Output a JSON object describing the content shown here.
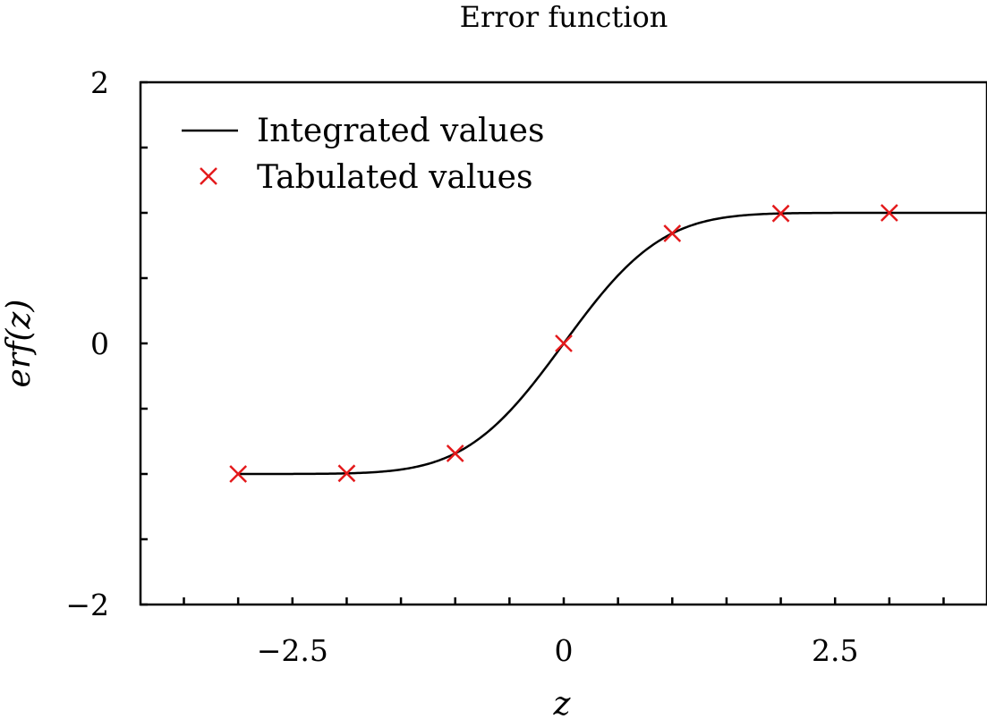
{
  "chart_data": {
    "type": "line",
    "title": "Error function",
    "xlabel": "z",
    "ylabel": "erf(z)",
    "xlim": [
      -3.9,
      3.9
    ],
    "ylim": [
      -2,
      2
    ],
    "xticks": {
      "major": [
        -2.5,
        0,
        2.5
      ],
      "major_labels": [
        "−2.5",
        "0",
        "2.5"
      ],
      "minor": [
        -3.5,
        -3.0,
        -2.5,
        -2.0,
        -1.5,
        -1.0,
        -0.5,
        0,
        0.5,
        1.0,
        1.5,
        2.0,
        2.5,
        3.0,
        3.5
      ]
    },
    "yticks": {
      "major": [
        -2,
        0,
        2
      ],
      "major_labels": [
        "−2",
        "0",
        "2"
      ],
      "minor": [
        -2,
        -1.5,
        -1,
        -0.5,
        0,
        0.5,
        1,
        1.5,
        2
      ]
    },
    "grid": false,
    "legend_position": "top-left",
    "series": [
      {
        "name": "Integrated values",
        "kind": "line",
        "color": "#000000",
        "function": "erf",
        "x_range": [
          -3,
          3.9
        ]
      },
      {
        "name": "Tabulated values",
        "kind": "marker",
        "marker": "x",
        "color": "#e41a1c",
        "x": [
          -3,
          -2,
          -1,
          0,
          1,
          2,
          3
        ],
        "y": [
          -0.99998,
          -0.99532,
          -0.8427,
          0,
          0.8427,
          0.99532,
          0.99998
        ]
      }
    ]
  }
}
